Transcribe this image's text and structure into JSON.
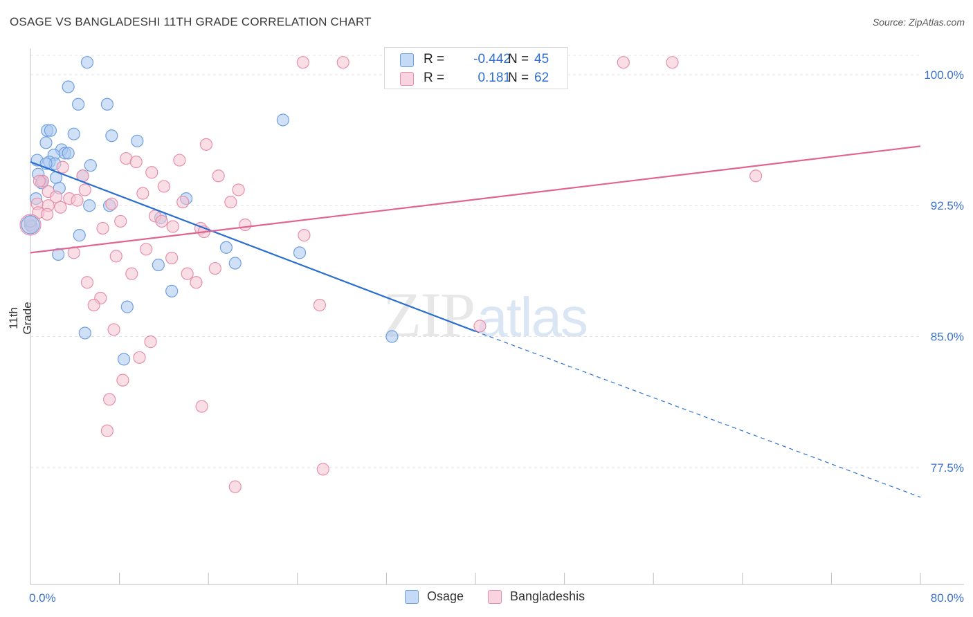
{
  "title": "OSAGE VS BANGLADESHI 11TH GRADE CORRELATION CHART",
  "source": "Source: ZipAtlas.com",
  "watermark": {
    "part1": "ZIP",
    "part2": "atlas"
  },
  "colors": {
    "osage_fill": "#aac8f0",
    "osage_stroke": "#6f9fde",
    "osage_line": "#2a6fd0",
    "bangla_fill": "#f6c3d2",
    "bangla_stroke": "#e68fab",
    "bangla_line": "#e06490",
    "tick_label": "#3a72cc",
    "grid": "#e3e3e3"
  },
  "legend_top": {
    "rows": [
      {
        "r_label": "R =",
        "r_value": "-0.442",
        "n_label": "N =",
        "n_value": "45"
      },
      {
        "r_label": "R =",
        "r_value": "0.181",
        "n_label": "N =",
        "n_value": "62"
      }
    ]
  },
  "legend_bottom": [
    "Osage",
    "Bangladeshis"
  ],
  "chart_data": {
    "type": "scatter",
    "title": "OSAGE VS BANGLADESHI 11TH GRADE CORRELATION CHART",
    "xlabel": "",
    "ylabel": "11th Grade",
    "xlim": [
      0,
      80
    ],
    "ylim": [
      70.8,
      101.5
    ],
    "x_tick_labels": [
      {
        "value": 0,
        "label": "0.0%"
      },
      {
        "value": 80,
        "label": "80.0%"
      }
    ],
    "y_tick_labels": [
      {
        "value": 77.5,
        "label": "77.5%"
      },
      {
        "value": 85.0,
        "label": "85.0%"
      },
      {
        "value": 92.5,
        "label": "92.5%"
      },
      {
        "value": 100.0,
        "label": "100.0%"
      }
    ],
    "x_minor_ticks": [
      0,
      8,
      16,
      24,
      32,
      40,
      48,
      56,
      64,
      72,
      80
    ],
    "series": [
      {
        "name": "Osage",
        "points": [
          [
            5.1,
            100.7
          ],
          [
            3.4,
            99.3
          ],
          [
            4.3,
            98.3
          ],
          [
            6.9,
            98.3
          ],
          [
            22.7,
            97.4
          ],
          [
            1.5,
            96.8
          ],
          [
            1.8,
            96.8
          ],
          [
            3.9,
            96.6
          ],
          [
            7.3,
            96.5
          ],
          [
            9.6,
            96.2
          ],
          [
            1.4,
            96.1
          ],
          [
            2.8,
            95.7
          ],
          [
            3.1,
            95.5
          ],
          [
            3.4,
            95.5
          ],
          [
            2.1,
            95.4
          ],
          [
            0.6,
            95.1
          ],
          [
            1.7,
            95.0
          ],
          [
            2.2,
            94.9
          ],
          [
            1.4,
            94.9
          ],
          [
            5.4,
            94.8
          ],
          [
            0.7,
            94.3
          ],
          [
            4.7,
            94.2
          ],
          [
            2.3,
            94.1
          ],
          [
            1.0,
            93.8
          ],
          [
            1.1,
            93.9
          ],
          [
            2.6,
            93.5
          ],
          [
            0.5,
            92.9
          ],
          [
            14.0,
            92.9
          ],
          [
            5.3,
            92.5
          ],
          [
            7.1,
            92.5
          ],
          [
            11.7,
            91.8
          ],
          [
            0.0,
            91.4
          ],
          [
            0.1,
            91.3
          ],
          [
            4.4,
            90.8
          ],
          [
            17.6,
            90.1
          ],
          [
            24.2,
            89.8
          ],
          [
            2.5,
            89.7
          ],
          [
            18.4,
            89.2
          ],
          [
            11.5,
            89.1
          ],
          [
            12.7,
            87.6
          ],
          [
            8.7,
            86.7
          ],
          [
            4.9,
            85.2
          ],
          [
            32.5,
            85.0
          ],
          [
            8.4,
            83.7
          ],
          [
            0.0,
            91.6
          ]
        ]
      },
      {
        "name": "Bangladeshis",
        "points": [
          [
            24.5,
            100.7
          ],
          [
            28.1,
            100.7
          ],
          [
            53.3,
            100.7
          ],
          [
            57.7,
            100.7
          ],
          [
            15.8,
            96.0
          ],
          [
            8.6,
            95.2
          ],
          [
            13.4,
            95.1
          ],
          [
            9.5,
            95.0
          ],
          [
            2.9,
            94.7
          ],
          [
            10.9,
            94.4
          ],
          [
            4.7,
            94.2
          ],
          [
            16.9,
            94.2
          ],
          [
            65.2,
            94.2
          ],
          [
            1.1,
            93.9
          ],
          [
            0.8,
            93.9
          ],
          [
            12.0,
            93.6
          ],
          [
            4.9,
            93.4
          ],
          [
            18.7,
            93.4
          ],
          [
            1.6,
            93.3
          ],
          [
            10.1,
            93.2
          ],
          [
            2.3,
            93.0
          ],
          [
            3.5,
            92.9
          ],
          [
            4.2,
            92.8
          ],
          [
            13.7,
            92.7
          ],
          [
            18.0,
            92.7
          ],
          [
            7.3,
            92.6
          ],
          [
            0.6,
            92.6
          ],
          [
            1.6,
            92.5
          ],
          [
            2.7,
            92.4
          ],
          [
            0.7,
            92.1
          ],
          [
            1.5,
            92.0
          ],
          [
            11.2,
            91.9
          ],
          [
            8.1,
            91.6
          ],
          [
            11.8,
            91.6
          ],
          [
            19.3,
            91.4
          ],
          [
            12.8,
            91.3
          ],
          [
            15.3,
            91.2
          ],
          [
            6.5,
            91.2
          ],
          [
            15.6,
            91.0
          ],
          [
            24.6,
            90.8
          ],
          [
            10.4,
            90.0
          ],
          [
            3.9,
            89.8
          ],
          [
            7.7,
            89.6
          ],
          [
            12.7,
            89.5
          ],
          [
            16.6,
            88.9
          ],
          [
            9.1,
            88.6
          ],
          [
            14.1,
            88.6
          ],
          [
            14.9,
            88.1
          ],
          [
            5.1,
            88.1
          ],
          [
            6.3,
            87.2
          ],
          [
            5.7,
            86.8
          ],
          [
            26.0,
            86.8
          ],
          [
            40.4,
            85.6
          ],
          [
            7.5,
            85.4
          ],
          [
            10.8,
            84.7
          ],
          [
            9.8,
            83.8
          ],
          [
            8.3,
            82.5
          ],
          [
            7.1,
            81.4
          ],
          [
            15.4,
            81.0
          ],
          [
            6.9,
            79.6
          ],
          [
            26.3,
            77.4
          ],
          [
            18.4,
            76.4
          ]
        ]
      }
    ],
    "trend_lines": [
      {
        "series": "Osage",
        "x0": 0.0,
        "y0": 95.0,
        "x1": 40.0,
        "y1": 85.3,
        "dashed_to_x": 80.0,
        "dashed_to_y": 75.8
      },
      {
        "series": "Bangladeshis",
        "x0": 0.0,
        "y0": 89.8,
        "x1": 80.0,
        "y1": 95.9
      }
    ]
  }
}
